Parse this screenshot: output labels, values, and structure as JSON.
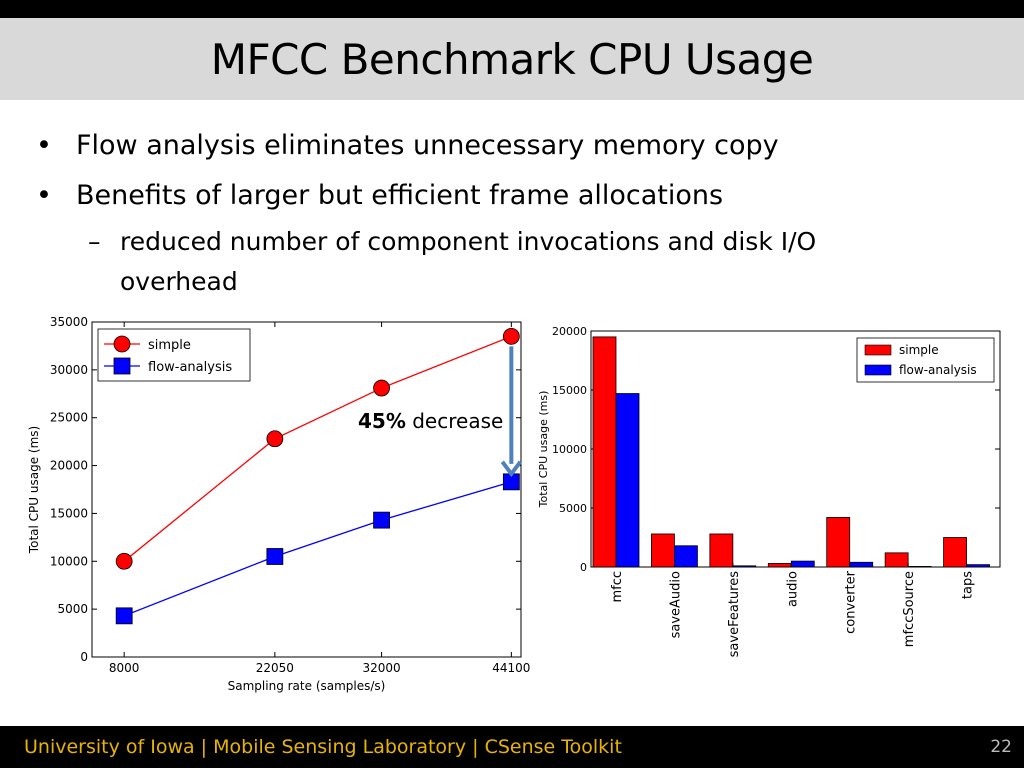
{
  "slide": {
    "title": "MFCC Benchmark CPU Usage",
    "bullets": [
      "Flow analysis eliminates unnecessary memory copy",
      "Benefits of larger but efficient frame allocations"
    ],
    "sub_bullets": [
      "reduced number of component invocations and disk I/O overhead"
    ],
    "annotation": {
      "bold": "45%",
      "text": " decrease"
    },
    "footer": "University of Iowa | Mobile Sensing Laboratory | CSense Toolkit",
    "page_number": "22"
  },
  "colors": {
    "simple": "#ff0000",
    "flow_analysis": "#0000ff",
    "arrow": "#4f81bd",
    "footer_text": "#e8b400"
  },
  "chart_data": [
    {
      "type": "line",
      "xlabel": "Sampling rate (samples/s)",
      "ylabel": "Total CPU usage (ms)",
      "x": [
        8000,
        22050,
        32000,
        44100
      ],
      "x_ticks": [
        "8000",
        "22050",
        "32000",
        "44100"
      ],
      "y_ticks": [
        "0",
        "5000",
        "10000",
        "15000",
        "20000",
        "25000",
        "30000",
        "35000"
      ],
      "xlim": [
        5000,
        45000
      ],
      "ylim": [
        0,
        35000
      ],
      "legend_position": "top-left",
      "series": [
        {
          "name": "simple",
          "values": [
            10000,
            22800,
            28100,
            33500
          ],
          "marker": "circle"
        },
        {
          "name": "flow-analysis",
          "values": [
            4300,
            10500,
            14300,
            18300
          ],
          "marker": "square"
        }
      ]
    },
    {
      "type": "bar",
      "ylabel": "Total CPU usage (ms)",
      "categories": [
        "mfcc",
        "saveAudio",
        "saveFeatures",
        "audio",
        "converter",
        "mfccSource",
        "taps"
      ],
      "y_ticks": [
        "0",
        "5000",
        "10000",
        "15000",
        "20000"
      ],
      "ylim": [
        0,
        20000
      ],
      "legend_position": "top-right",
      "series": [
        {
          "name": "simple",
          "values": [
            19500,
            2800,
            2800,
            300,
            4200,
            1200,
            2500
          ]
        },
        {
          "name": "flow-analysis",
          "values": [
            14700,
            1800,
            100,
            500,
            400,
            50,
            200
          ]
        }
      ]
    }
  ]
}
